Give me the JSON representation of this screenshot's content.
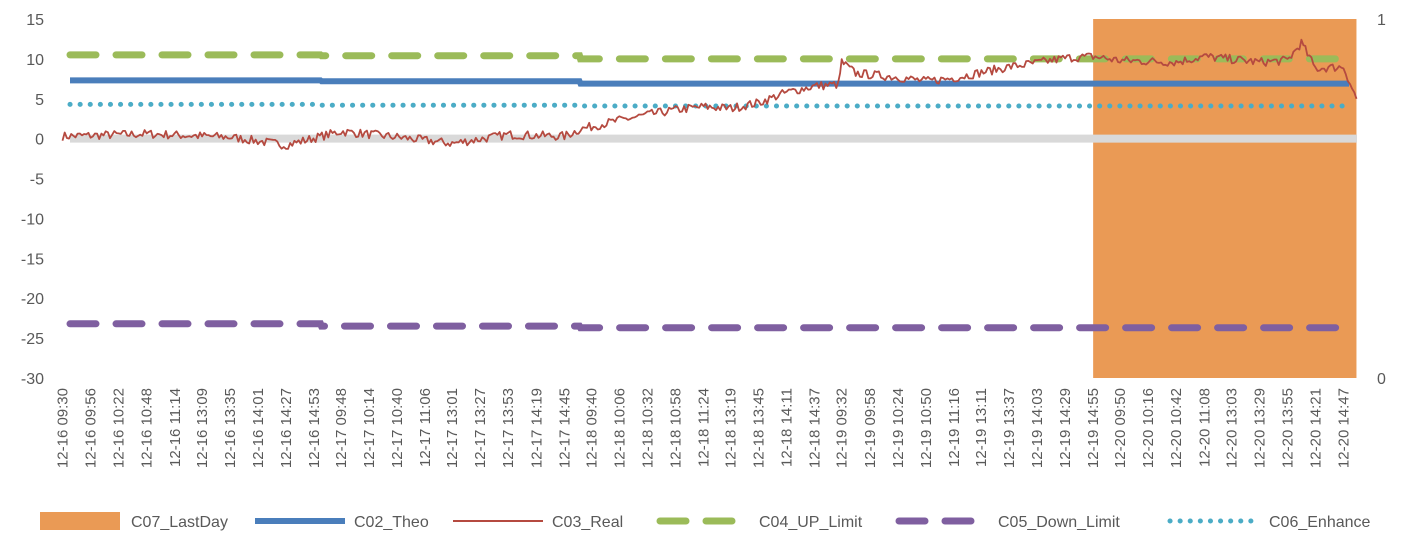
{
  "chart_data": {
    "type": "line",
    "title": "",
    "xlabel": "",
    "ylabel": "",
    "ylim": [
      -30,
      15
    ],
    "y_ticks": [
      15,
      10,
      5,
      0,
      -5,
      -10,
      -15,
      -20,
      -25,
      -30
    ],
    "y2lim": [
      0,
      1
    ],
    "y2_ticks": [
      1,
      0
    ],
    "grid": false,
    "legend_position": "bottom",
    "x_tick_labels": [
      "12-16 09:30",
      "12-16 09:56",
      "12-16 10:22",
      "12-16 10:48",
      "12-16 11:14",
      "12-16 13:09",
      "12-16 13:35",
      "12-16 14:01",
      "12-16 14:27",
      "12-16 14:53",
      "12-17 09:48",
      "12-17 10:14",
      "12-17 10:40",
      "12-17 11:06",
      "12-17 13:01",
      "12-17 13:27",
      "12-17 13:53",
      "12-17 14:19",
      "12-17 14:45",
      "12-18 09:40",
      "12-18 10:06",
      "12-18 10:32",
      "12-18 10:58",
      "12-18 11:24",
      "12-18 13:19",
      "12-18 13:45",
      "12-18 14:11",
      "12-18 14:37",
      "12-19 09:32",
      "12-19 09:58",
      "12-19 10:24",
      "12-19 10:50",
      "12-19 11:16",
      "12-19 13:11",
      "12-19 13:37",
      "12-19 14:03",
      "12-19 14:29",
      "12-19 14:55",
      "12-20 09:50",
      "12-20 10:16",
      "12-20 10:42",
      "12-20 11:08",
      "12-20 13:03",
      "12-20 13:29",
      "12-20 13:55",
      "12-20 14:21",
      "12-20 14:47"
    ],
    "series": [
      {
        "name": "C07_LastDay",
        "kind": "area",
        "axis": "secondary",
        "color": "#EA9A55",
        "x_range": [
          "12-19 14:55",
          "12-20 14:59"
        ],
        "value": 1
      },
      {
        "name": "C02_Theo",
        "kind": "step",
        "color": "#4A7EBB",
        "stroke": "solid",
        "segments": [
          {
            "from": "12-16 09:30",
            "to": "12-16 14:59",
            "value": 7.3
          },
          {
            "from": "12-17 09:30",
            "to": "12-17 14:59",
            "value": 7.2
          },
          {
            "from": "12-18 09:30",
            "to": "12-20 14:59",
            "value": 6.9
          }
        ]
      },
      {
        "name": "C03_Real",
        "kind": "line",
        "color": "#B54A40",
        "stroke": "solid",
        "x": [
          "12-16 09:30",
          "12-16 10:48",
          "12-16 13:35",
          "12-16 14:27",
          "12-17 09:48",
          "12-17 10:40",
          "12-17 13:01",
          "12-17 13:53",
          "12-17 14:45",
          "12-18 09:30",
          "12-18 10:06",
          "12-18 10:32",
          "12-18 10:58",
          "12-18 11:24",
          "12-18 13:19",
          "12-18 13:45",
          "12-18 14:11",
          "12-18 14:37",
          "12-18 14:59",
          "12-19 09:32",
          "12-19 09:45",
          "12-19 10:24",
          "12-19 10:50",
          "12-19 11:16",
          "12-19 13:37",
          "12-19 14:03",
          "12-19 14:29",
          "12-19 14:55",
          "12-20 09:50",
          "12-20 10:42",
          "12-20 11:08",
          "12-20 13:29",
          "12-20 13:55",
          "12-20 14:08",
          "12-20 14:21",
          "12-20 14:47",
          "12-20 14:59"
        ],
        "y": [
          0.3,
          0.6,
          0.2,
          -0.8,
          0.9,
          0.2,
          -0.6,
          0.5,
          0.3,
          1.2,
          2.3,
          3.0,
          3.6,
          4.0,
          3.8,
          4.5,
          5.8,
          6.6,
          6.8,
          9.6,
          8.2,
          7.7,
          7.2,
          7.6,
          9.0,
          9.5,
          10.1,
          10.3,
          9.8,
          9.6,
          10.3,
          9.6,
          9.8,
          12.0,
          8.8,
          9.0,
          5.0
        ]
      },
      {
        "name": "C04_UP_Limit",
        "kind": "step",
        "color": "#9BBB59",
        "stroke": "dashed",
        "segments": [
          {
            "from": "12-16 09:30",
            "to": "12-16 14:59",
            "value": 10.5
          },
          {
            "from": "12-17 09:30",
            "to": "12-17 14:59",
            "value": 10.4
          },
          {
            "from": "12-18 09:30",
            "to": "12-20 14:59",
            "value": 10.0
          }
        ]
      },
      {
        "name": "C05_Down_Limit",
        "kind": "step",
        "color": "#7F5FA0",
        "stroke": "dashed",
        "segments": [
          {
            "from": "12-16 09:30",
            "to": "12-16 14:59",
            "value": -23.2
          },
          {
            "from": "12-17 09:30",
            "to": "12-17 14:59",
            "value": -23.5
          },
          {
            "from": "12-18 09:30",
            "to": "12-20 14:59",
            "value": -23.7
          }
        ]
      },
      {
        "name": "C06_Enhance",
        "kind": "step",
        "color": "#4BACC6",
        "stroke": "dotted",
        "segments": [
          {
            "from": "12-16 09:30",
            "to": "12-16 14:59",
            "value": 4.3
          },
          {
            "from": "12-17 09:30",
            "to": "12-17 14:59",
            "value": 4.2
          },
          {
            "from": "12-18 09:30",
            "to": "12-20 14:59",
            "value": 4.1
          }
        ]
      }
    ],
    "zero_line_color": "#D9D9D9"
  }
}
